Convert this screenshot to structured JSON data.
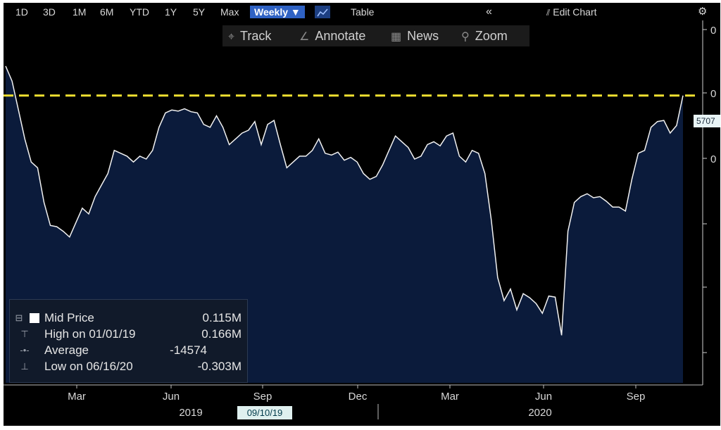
{
  "toolbar": {
    "ranges": [
      "1D",
      "3D",
      "1M",
      "6M",
      "YTD",
      "1Y",
      "5Y",
      "Max"
    ],
    "frequency": "Weekly ▼",
    "table": "Table",
    "collapse": "«",
    "edit_chart": "Edit Chart",
    "settings_icon": "gear-icon",
    "chart_icon": "line-chart-icon"
  },
  "tools": {
    "track": "Track",
    "annotate": "Annotate",
    "news": "News",
    "zoom": "Zoom"
  },
  "legend": {
    "items": [
      {
        "label": "Mid Price",
        "value": "0.115M"
      },
      {
        "label": "High on 01/01/19",
        "value": "0.166M"
      },
      {
        "label": "Average",
        "value": "-14574"
      },
      {
        "label": "Low on 06/16/20",
        "value": "-0.303M"
      }
    ]
  },
  "price_tag": "5707",
  "date_tag": "09/10/19",
  "y_tick_stub": "0",
  "chart_data": {
    "type": "area",
    "title": "",
    "xlabel": "",
    "ylabel": "",
    "x_ticks": [
      "Mar",
      "Jun",
      "Sep",
      "Dec",
      "Mar",
      "Jun",
      "Sep"
    ],
    "years": [
      "2019",
      "2020"
    ],
    "reference_line": {
      "value": 0.115,
      "style": "dashed",
      "color": "#f0e030"
    },
    "ylim": [
      -0.33,
      0.2
    ],
    "units": "M",
    "series": [
      {
        "values": [
          0.166,
          0.14,
          0.09,
          0.04,
          0.0,
          -0.01,
          -0.07,
          -0.11,
          -0.112,
          -0.12,
          -0.13,
          -0.105,
          -0.08,
          -0.09,
          -0.06,
          -0.04,
          -0.02,
          0.02,
          0.015,
          0.01,
          0.0,
          0.01,
          0.005,
          0.02,
          0.06,
          0.085,
          0.09,
          0.088,
          0.092,
          0.087,
          0.085,
          0.065,
          0.06,
          0.08,
          0.06,
          0.03,
          0.04,
          0.05,
          0.055,
          0.07,
          0.03,
          0.065,
          0.072,
          0.03,
          -0.01,
          0.0,
          0.01,
          0.01,
          0.02,
          0.04,
          0.015,
          0.012,
          0.017,
          0.003,
          0.008,
          0.0,
          -0.02,
          -0.03,
          -0.025,
          -0.005,
          0.02,
          0.045,
          0.035,
          0.025,
          0.005,
          0.01,
          0.03,
          0.035,
          0.028,
          0.045,
          0.05,
          0.01,
          0.0,
          0.02,
          0.015,
          -0.02,
          -0.1,
          -0.2,
          -0.24,
          -0.22,
          -0.256,
          -0.228,
          -0.235,
          -0.245,
          -0.262,
          -0.232,
          -0.234,
          -0.3,
          -0.12,
          -0.07,
          -0.06,
          -0.055,
          -0.062,
          -0.06,
          -0.068,
          -0.078,
          -0.078,
          -0.085,
          -0.03,
          0.015,
          0.02,
          0.06,
          0.07,
          0.072,
          0.05,
          0.063,
          0.115
        ]
      }
    ]
  }
}
